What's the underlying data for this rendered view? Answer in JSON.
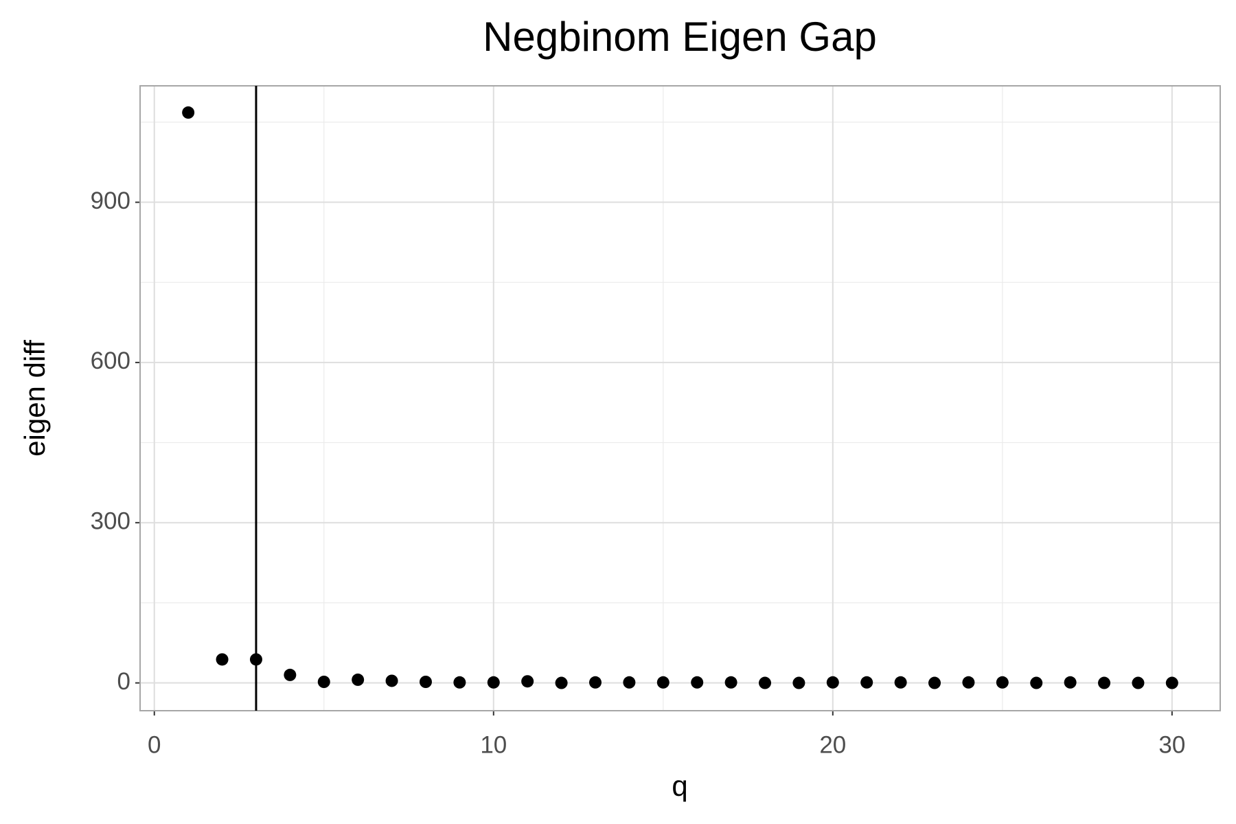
{
  "chart_data": {
    "type": "scatter",
    "title": "Negbinom Eigen Gap",
    "x_label": "q",
    "y_label": "eigen diff",
    "x": [
      1,
      2,
      3,
      4,
      5,
      6,
      7,
      8,
      9,
      10,
      11,
      12,
      13,
      14,
      15,
      16,
      17,
      18,
      19,
      20,
      21,
      22,
      23,
      24,
      25,
      26,
      27,
      28,
      29,
      30
    ],
    "values": [
      1068,
      44,
      44,
      15,
      2,
      6,
      4,
      2,
      1,
      1,
      3,
      0,
      1,
      1,
      1,
      1,
      1,
      0,
      0,
      1,
      1,
      1,
      0,
      1,
      1,
      0,
      1,
      0,
      0,
      0
    ],
    "color": "#000000",
    "vline": 3,
    "xlim": [
      -0.42,
      31.42
    ],
    "ylim": [
      -52,
      1118
    ],
    "xticks": [
      0,
      10,
      20,
      30
    ],
    "yticks": [
      0,
      300,
      600,
      900
    ],
    "xminor": [
      5,
      15,
      25
    ],
    "yminor": [
      150,
      450,
      750,
      1050
    ],
    "grid": true
  }
}
